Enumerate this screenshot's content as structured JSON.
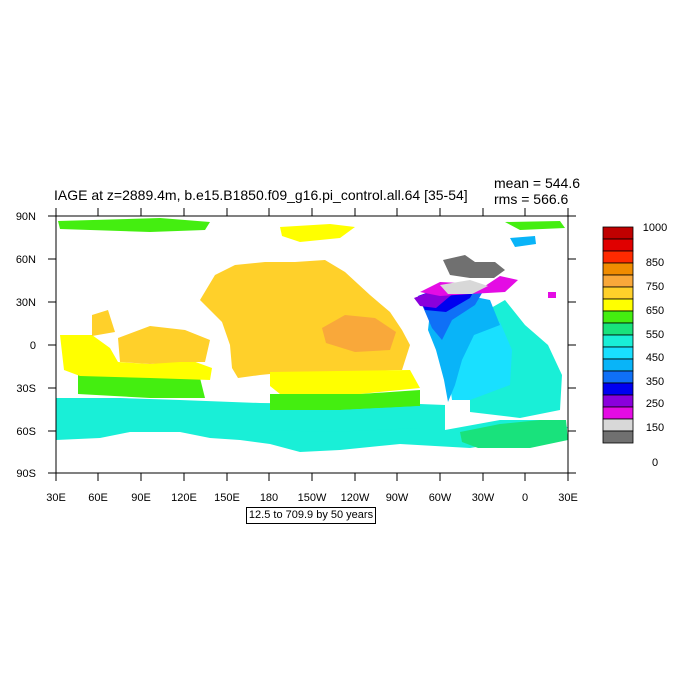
{
  "title": "IAGE at z=2889.4m, b.e15.B1850.f09_g16.pi_control.all.64 [35-54]",
  "stats": {
    "mean": "mean = 544.6",
    "rms": "rms = 566.6"
  },
  "map": {
    "lat_labels": [
      "90N",
      "60N",
      "30N",
      "0",
      "30S",
      "60S",
      "90S"
    ],
    "lon_labels": [
      "30E",
      "60E",
      "90E",
      "120E",
      "150E",
      "180",
      "150W",
      "120W",
      "90W",
      "60W",
      "30W",
      "0",
      "30E"
    ]
  },
  "colorbar": {
    "colors": [
      "#c00000",
      "#e00000",
      "#ff2a00",
      "#f08c00",
      "#f9a83a",
      "#ffd02a",
      "#ffff00",
      "#44ee10",
      "#19e27c",
      "#19efd7",
      "#19e0ff",
      "#09b4f8",
      "#0f70f7",
      "#0000f0",
      "#8a00dc",
      "#e40ce4",
      "#d8d8d8",
      "#707070"
    ],
    "labels": [
      "1000",
      "850",
      "750",
      "650",
      "550",
      "450",
      "350",
      "250",
      "150",
      "0"
    ]
  },
  "footer": "12.5 to 709.9 by 50 years"
}
